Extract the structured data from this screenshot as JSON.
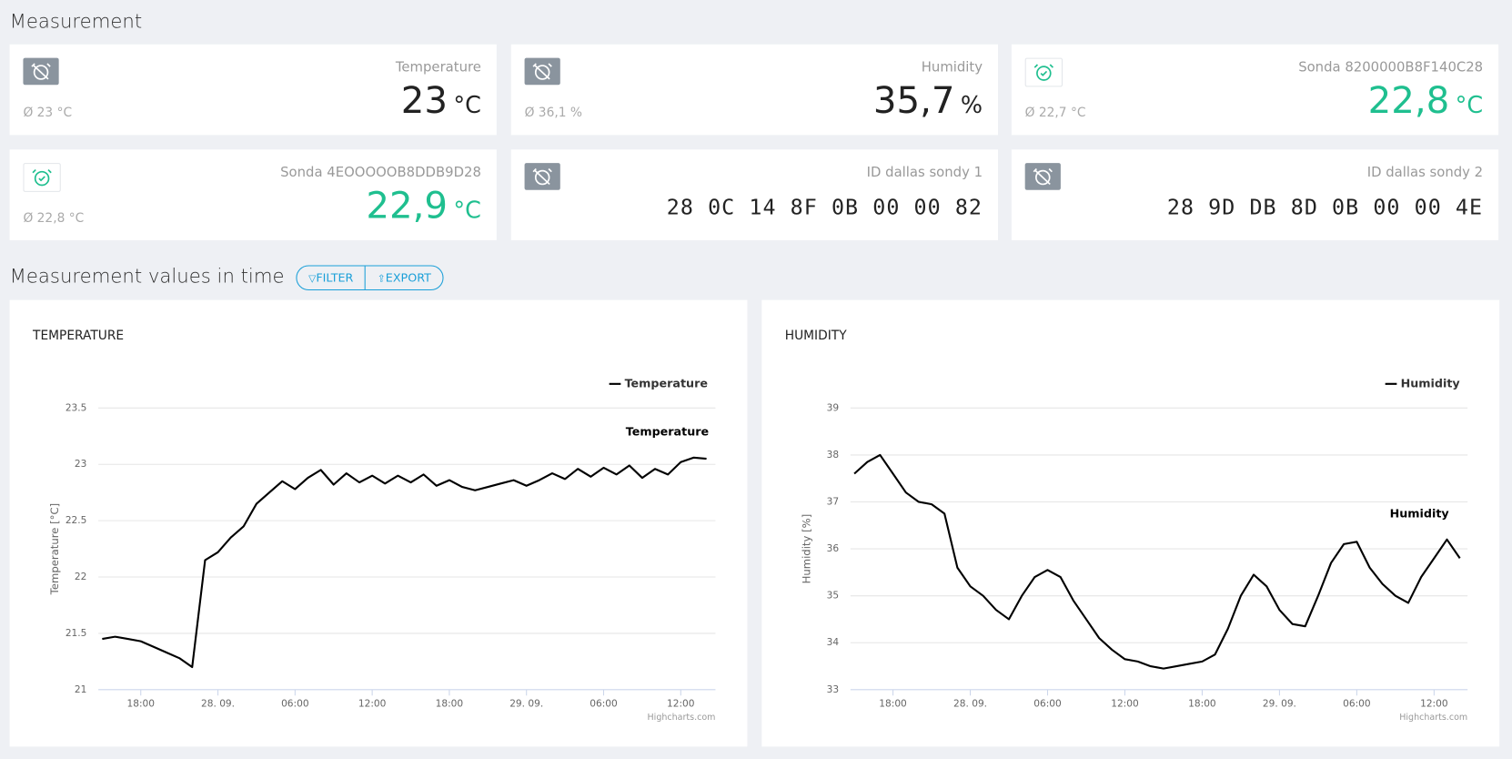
{
  "header": {
    "title": "Measurement"
  },
  "cards": [
    {
      "label": "Temperature",
      "value": "23",
      "unit": "°C",
      "average": "Ø 23 °C",
      "alarm": false
    },
    {
      "label": "Humidity",
      "value": "35,7",
      "unit": "%",
      "average": "Ø 36,1 %",
      "alarm": false
    },
    {
      "label": "Sonda 8200000B8F140C28",
      "value": "22,8",
      "unit": "°C",
      "average": "Ø 22,7 °C",
      "alarm": true
    },
    {
      "label": "Sonda 4EOOOOOB8DDB9D28",
      "value": "22,9",
      "unit": "°C",
      "average": "Ø 22,8 °C",
      "alarm": true
    },
    {
      "label": "ID dallas sondy 1",
      "value": "28 0C 14 8F 0B 00 00 82",
      "alarm": false
    },
    {
      "label": "ID dallas sondy 2",
      "value": "28 9D DB 8D 0B 00 00 4E",
      "alarm": false
    }
  ],
  "section": {
    "title": "Measurement values in time",
    "buttons": [
      "FILTER",
      "EXPORT"
    ]
  },
  "chart_data": [
    {
      "type": "line",
      "title": "TEMPERATURE",
      "y_label": "Temperature [°C]",
      "credits": "Highcharts.com",
      "legend": "top-right",
      "grid": true,
      "x": [
        15,
        16,
        17,
        18,
        19,
        20,
        21,
        22,
        23,
        24,
        25,
        26,
        27,
        28,
        29,
        30,
        31,
        32,
        33,
        34,
        35,
        36,
        37,
        38,
        39,
        40,
        41,
        42,
        43,
        44,
        45,
        46,
        47,
        48,
        49,
        50,
        51,
        52,
        53,
        54,
        55,
        56,
        57,
        58,
        59,
        60,
        61,
        62
      ],
      "series": [
        {
          "name": "Temperature",
          "color": "#000000",
          "values": [
            21.45,
            21.47,
            21.45,
            21.43,
            21.38,
            21.33,
            21.28,
            21.2,
            22.15,
            22.22,
            22.35,
            22.45,
            22.65,
            22.75,
            22.85,
            22.78,
            22.88,
            22.95,
            22.82,
            22.92,
            22.84,
            22.9,
            22.83,
            22.9,
            22.84,
            22.91,
            22.81,
            22.86,
            22.8,
            22.77,
            22.8,
            22.83,
            22.86,
            22.81,
            22.86,
            22.92,
            22.87,
            22.96,
            22.89,
            22.97,
            22.91,
            22.99,
            22.88,
            22.96,
            22.91,
            23.02,
            23.06,
            23.05
          ]
        }
      ],
      "xlim": [
        14.7,
        62.7
      ],
      "xticks": [
        {
          "value": 18,
          "label": "18:00"
        },
        {
          "value": 24,
          "label": "28. 09."
        },
        {
          "value": 30,
          "label": "06:00"
        },
        {
          "value": 36,
          "label": "12:00"
        },
        {
          "value": 42,
          "label": "18:00"
        },
        {
          "value": 48,
          "label": "29. 09."
        },
        {
          "value": 54,
          "label": "06:00"
        },
        {
          "value": 60,
          "label": "12:00"
        }
      ],
      "ylim": [
        21,
        23.5
      ],
      "yticks": [
        21,
        21.5,
        22,
        22.5,
        23,
        23.5
      ]
    },
    {
      "type": "line",
      "title": "HUMIDITY",
      "y_label": "Humidity [%]",
      "credits": "Highcharts.com",
      "legend": "top-right",
      "grid": true,
      "x": [
        15,
        16,
        17,
        18,
        19,
        20,
        21,
        22,
        23,
        24,
        25,
        26,
        27,
        28,
        29,
        30,
        31,
        32,
        33,
        34,
        35,
        36,
        37,
        38,
        39,
        40,
        41,
        42,
        43,
        44,
        45,
        46,
        47,
        48,
        49,
        50,
        51,
        52,
        53,
        54,
        55,
        56,
        57,
        58,
        59,
        60,
        61,
        62
      ],
      "series": [
        {
          "name": "Humidity",
          "color": "#000000",
          "values": [
            37.6,
            37.85,
            38.0,
            37.6,
            37.2,
            37.0,
            36.95,
            36.75,
            35.6,
            35.2,
            35.0,
            34.7,
            34.5,
            35.0,
            35.4,
            35.55,
            35.4,
            34.9,
            34.5,
            34.1,
            33.85,
            33.65,
            33.6,
            33.5,
            33.45,
            33.5,
            33.55,
            33.6,
            33.75,
            34.3,
            35.0,
            35.45,
            35.2,
            34.7,
            34.4,
            34.35,
            35.0,
            35.7,
            36.1,
            36.15,
            35.6,
            35.25,
            35.0,
            34.85,
            35.4,
            35.8,
            36.2,
            35.8
          ]
        }
      ],
      "xlim": [
        14.7,
        62.6
      ],
      "xticks": [
        {
          "value": 18,
          "label": "18:00"
        },
        {
          "value": 24,
          "label": "28. 09."
        },
        {
          "value": 30,
          "label": "06:00"
        },
        {
          "value": 36,
          "label": "12:00"
        },
        {
          "value": 42,
          "label": "18:00"
        },
        {
          "value": 48,
          "label": "29. 09."
        },
        {
          "value": 54,
          "label": "06:00"
        },
        {
          "value": 60,
          "label": "12:00"
        }
      ],
      "ylim": [
        33,
        39
      ],
      "yticks": [
        33,
        34,
        35,
        36,
        37,
        38,
        39
      ]
    }
  ]
}
